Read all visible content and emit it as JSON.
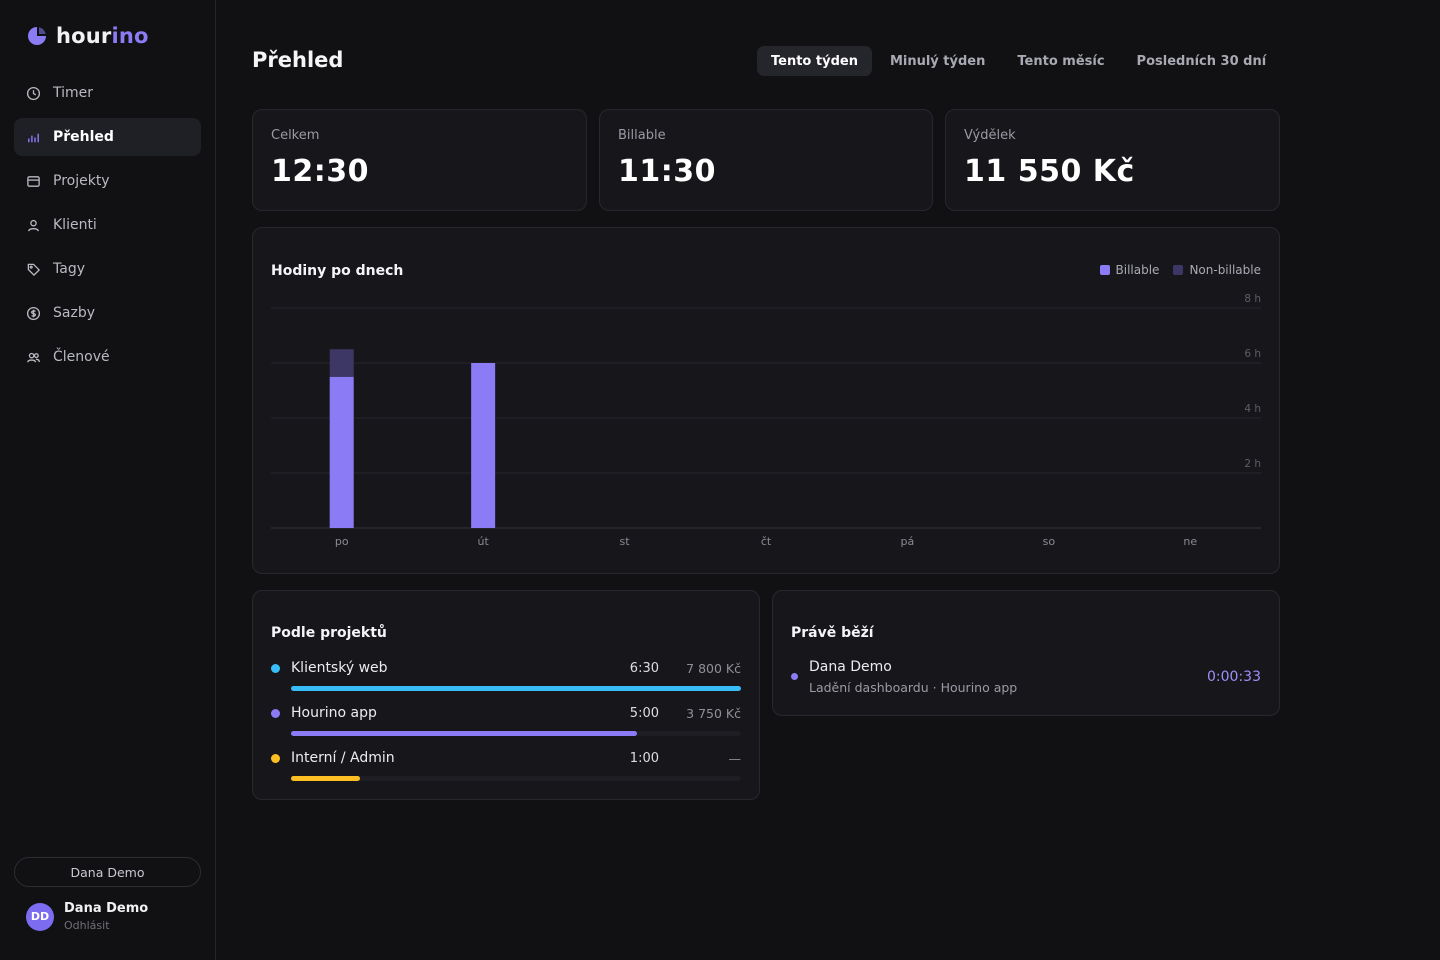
{
  "brand": {
    "name_start": "hour",
    "name_end": "ino",
    "accent": "#8b7cf6"
  },
  "sidebar": {
    "items": [
      {
        "label": "Timer",
        "icon": "clock-icon",
        "active": false
      },
      {
        "label": "Přehled",
        "icon": "bar-chart-icon",
        "active": true
      },
      {
        "label": "Projekty",
        "icon": "folder-icon",
        "active": false
      },
      {
        "label": "Klienti",
        "icon": "user-icon",
        "active": false
      },
      {
        "label": "Tagy",
        "icon": "tag-icon",
        "active": false
      },
      {
        "label": "Sazby",
        "icon": "dollar-icon",
        "active": false
      },
      {
        "label": "Členové",
        "icon": "users-icon",
        "active": false
      }
    ],
    "workspace_pill": "Dana Demo",
    "user": {
      "initials": "DD",
      "name": "Dana Demo",
      "logout": "Odhlásit"
    }
  },
  "header": {
    "title": "Přehled",
    "tabs": [
      {
        "label": "Tento týden",
        "active": true
      },
      {
        "label": "Minulý týden",
        "active": false
      },
      {
        "label": "Tento měsíc",
        "active": false
      },
      {
        "label": "Posledních 30 dní",
        "active": false
      }
    ]
  },
  "stats": [
    {
      "label": "Celkem",
      "value": "12:30"
    },
    {
      "label": "Billable",
      "value": "11:30"
    },
    {
      "label": "Výdělek",
      "value": "11 550 Kč"
    }
  ],
  "chart_data": {
    "type": "bar",
    "title": "Hodiny po dnech",
    "categories": [
      "po",
      "út",
      "st",
      "čt",
      "pá",
      "so",
      "ne"
    ],
    "series": [
      {
        "name": "Billable",
        "values": [
          5.5,
          6,
          0,
          0,
          0,
          0,
          0
        ],
        "color": "#8b7cf6"
      },
      {
        "name": "Non-billable",
        "values": [
          1,
          0,
          0,
          0,
          0,
          0,
          0
        ],
        "color": "#3d3766"
      }
    ],
    "stacked": true,
    "ylim": [
      0,
      8
    ],
    "yticks": [
      2,
      4,
      6,
      8
    ],
    "ytick_labels": [
      "2 h",
      "4 h",
      "6 h",
      "8 h"
    ],
    "grid": true,
    "legend": "top-right"
  },
  "projects": {
    "title": "Podle projektů",
    "items": [
      {
        "name": "Klientský web",
        "time": "6:30",
        "amount": "7 800 Kč",
        "color": "#38bdf8",
        "share": 1.0
      },
      {
        "name": "Hourino app",
        "time": "5:00",
        "amount": "3 750 Kč",
        "color": "#8b7cf6",
        "share": 0.769
      },
      {
        "name": "Interní / Admin",
        "time": "1:00",
        "amount": "—",
        "color": "#fbbf24",
        "share": 0.154
      }
    ]
  },
  "running": {
    "title": "Právě běží",
    "user": "Dana Demo",
    "detail": "Ladění dashboardu · Hourino app",
    "elapsed": "0:00:33"
  }
}
